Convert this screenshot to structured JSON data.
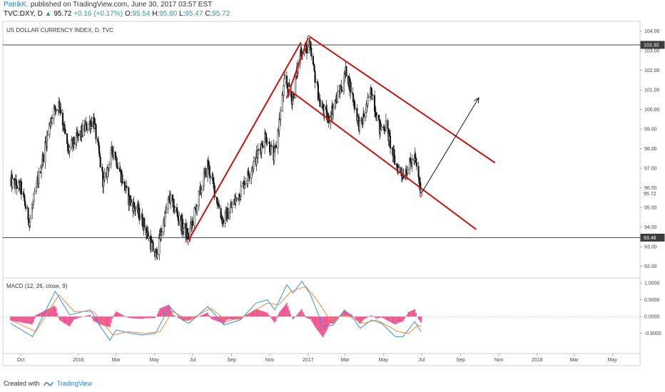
{
  "header": {
    "author": "PatrikK.",
    "published": "published on TradingView.com, June 30, 2017 03:57 EST",
    "symbol": "TVC:DXY, D",
    "price": "95.72",
    "change": "+0.16 (+0.17%)",
    "open_label": "O:",
    "open": "95.54",
    "high_label": "H:",
    "high": "95.80",
    "low_label": "L:",
    "low": "95.47",
    "close_label": "C:",
    "close": "95.72"
  },
  "footer": {
    "created_with": "Created with",
    "brand": "TradingView"
  },
  "colors": {
    "candles": "#111111",
    "trend_lines": "#cc1111",
    "arrow": "#111111",
    "macd_line": "#3d8fe0",
    "signal_line": "#f08a3c",
    "histogram": "#ee4a8a",
    "price_label_bg": "#3c3c3c"
  },
  "chart_data": [
    {
      "type": "candlestick",
      "title": "US DOLLAR CURRENCY INDEX, D, TVC",
      "x_labels": [
        "Oct",
        "2016",
        "Mar",
        "May",
        "Jul",
        "Sep",
        "Nov",
        "2017",
        "Mar",
        "May",
        "Jul",
        "Sep",
        "Nov",
        "2018",
        "Mar",
        "May"
      ],
      "y_ticks": [
        "104.00",
        "103.00",
        "102.00",
        "101.00",
        "100.00",
        "99.00",
        "98.00",
        "97.00",
        "96.00",
        "95.00",
        "94.00",
        "93.00",
        "92.00"
      ],
      "ylim": [
        91.4,
        104.5
      ],
      "price_labels": [
        {
          "text": "103.30",
          "value": 103.3
        },
        {
          "text": "95.72",
          "value": 95.72
        },
        {
          "text": "93.46",
          "value": 93.46
        }
      ],
      "horizontal_lines": [
        103.3,
        93.46
      ],
      "anchors": [
        {
          "date": "2015-09-15",
          "price": 96.3
        },
        {
          "date": "2015-10-01",
          "price": 96.0
        },
        {
          "date": "2015-10-15",
          "price": 94.3
        },
        {
          "date": "2015-11-20",
          "price": 99.8
        },
        {
          "date": "2015-12-02",
          "price": 100.3
        },
        {
          "date": "2015-12-15",
          "price": 97.9
        },
        {
          "date": "2015-12-25",
          "price": 98.3
        },
        {
          "date": "2016-01-10",
          "price": 99.0
        },
        {
          "date": "2016-01-25",
          "price": 99.5
        },
        {
          "date": "2016-02-10",
          "price": 96.2
        },
        {
          "date": "2016-02-25",
          "price": 98.0
        },
        {
          "date": "2016-03-20",
          "price": 95.5
        },
        {
          "date": "2016-04-10",
          "price": 94.5
        },
        {
          "date": "2016-05-03",
          "price": 92.5
        },
        {
          "date": "2016-05-25",
          "price": 95.5
        },
        {
          "date": "2016-06-15",
          "price": 94.0
        },
        {
          "date": "2016-06-24",
          "price": 93.5
        },
        {
          "date": "2016-07-25",
          "price": 97.2
        },
        {
          "date": "2016-08-18",
          "price": 94.3
        },
        {
          "date": "2016-09-10",
          "price": 95.5
        },
        {
          "date": "2016-10-10",
          "price": 97.5
        },
        {
          "date": "2016-10-25",
          "price": 98.7
        },
        {
          "date": "2016-11-08",
          "price": 97.5
        },
        {
          "date": "2016-11-25",
          "price": 101.5
        },
        {
          "date": "2016-12-07",
          "price": 100.5
        },
        {
          "date": "2016-12-20",
          "price": 103.0
        },
        {
          "date": "2017-01-03",
          "price": 103.2
        },
        {
          "date": "2017-01-20",
          "price": 100.3
        },
        {
          "date": "2017-02-02",
          "price": 99.5
        },
        {
          "date": "2017-02-25",
          "price": 101.3
        },
        {
          "date": "2017-03-03",
          "price": 102.0
        },
        {
          "date": "2017-03-25",
          "price": 99.0
        },
        {
          "date": "2017-04-12",
          "price": 101.0
        },
        {
          "date": "2017-04-25",
          "price": 99.0
        },
        {
          "date": "2017-05-05",
          "price": 99.2
        },
        {
          "date": "2017-05-20",
          "price": 97.2
        },
        {
          "date": "2017-06-01",
          "price": 96.7
        },
        {
          "date": "2017-06-20",
          "price": 97.5
        },
        {
          "date": "2017-06-30",
          "price": 95.72
        }
      ],
      "trend_lines": [
        {
          "from": {
            "date": "2016-06-24",
            "price": 93.3
          },
          "to": {
            "date": "2016-12-20",
            "price": 103.4
          }
        },
        {
          "from": {
            "date": "2017-01-02",
            "price": 103.75
          },
          "to": {
            "date": "2017-10-25",
            "price": 97.3
          }
        },
        {
          "from": {
            "date": "2016-12-02",
            "price": 101.0
          },
          "to": {
            "date": "2017-09-25",
            "price": 93.9
          }
        },
        {
          "from": {
            "date": "2016-11-28",
            "price": 100.6
          },
          "to": {
            "date": "2017-01-02",
            "price": 103.75
          }
        }
      ],
      "arrow": {
        "from": {
          "date": "2017-07-01",
          "price": 95.75
        },
        "to": {
          "date": "2017-09-30",
          "price": 100.6
        }
      },
      "pivot_marks": [
        {
          "date": "2016-06-24",
          "price": 93.3
        },
        {
          "date": "2016-12-02",
          "price": 101.1
        },
        {
          "date": "2017-01-02",
          "price": 103.7
        },
        {
          "date": "2017-06-30",
          "price": 95.65
        }
      ]
    },
    {
      "type": "line",
      "title": "MACD (12, 26, close, 9)",
      "y_ticks": [
        "1.0000",
        "0.5000",
        "0.0000",
        "-0.5000"
      ],
      "ylim": [
        -1.1,
        1.15
      ],
      "zero_line": 0,
      "series": [
        {
          "key": "macd",
          "color_key": "macd_line",
          "points": [
            [
              "2015-09-15",
              -0.2
            ],
            [
              "2015-10-20",
              -0.6
            ],
            [
              "2015-11-25",
              0.75
            ],
            [
              "2015-12-18",
              0.05
            ],
            [
              "2016-01-20",
              0.2
            ],
            [
              "2016-02-05",
              -0.3
            ],
            [
              "2016-02-20",
              -0.7
            ],
            [
              "2016-03-01",
              -0.4
            ],
            [
              "2016-03-25",
              -0.5
            ],
            [
              "2016-04-12",
              -0.55
            ],
            [
              "2016-05-03",
              -0.5
            ],
            [
              "2016-05-25",
              0.3
            ],
            [
              "2016-06-15",
              -0.1
            ],
            [
              "2016-06-25",
              -0.2
            ],
            [
              "2016-07-25",
              0.3
            ],
            [
              "2016-08-20",
              -0.25
            ],
            [
              "2016-09-15",
              -0.1
            ],
            [
              "2016-10-10",
              0.4
            ],
            [
              "2016-10-28",
              0.5
            ],
            [
              "2016-11-09",
              0.2
            ],
            [
              "2016-11-28",
              0.95
            ],
            [
              "2016-12-08",
              0.7
            ],
            [
              "2016-12-22",
              1.05
            ],
            [
              "2017-01-05",
              0.65
            ],
            [
              "2017-01-25",
              -0.3
            ],
            [
              "2017-02-10",
              -0.25
            ],
            [
              "2017-02-28",
              0.2
            ],
            [
              "2017-03-12",
              0.0
            ],
            [
              "2017-03-25",
              -0.35
            ],
            [
              "2017-04-12",
              -0.1
            ],
            [
              "2017-04-28",
              -0.2
            ],
            [
              "2017-05-20",
              -0.6
            ],
            [
              "2017-06-01",
              -0.6
            ],
            [
              "2017-06-20",
              -0.15
            ],
            [
              "2017-06-30",
              -0.45
            ]
          ]
        },
        {
          "key": "signal",
          "color_key": "signal_line",
          "points": [
            [
              "2015-09-15",
              -0.1
            ],
            [
              "2015-10-25",
              -0.45
            ],
            [
              "2015-12-01",
              0.65
            ],
            [
              "2015-12-25",
              0.15
            ],
            [
              "2016-01-25",
              0.15
            ],
            [
              "2016-02-25",
              -0.55
            ],
            [
              "2016-03-20",
              -0.45
            ],
            [
              "2016-04-15",
              -0.5
            ],
            [
              "2016-05-10",
              -0.45
            ],
            [
              "2016-05-30",
              0.15
            ],
            [
              "2016-06-25",
              -0.1
            ],
            [
              "2016-07-30",
              0.25
            ],
            [
              "2016-08-25",
              -0.15
            ],
            [
              "2016-09-20",
              0.0
            ],
            [
              "2016-10-28",
              0.4
            ],
            [
              "2016-11-15",
              0.35
            ],
            [
              "2016-12-05",
              0.75
            ],
            [
              "2016-12-28",
              0.9
            ],
            [
              "2017-01-15",
              0.5
            ],
            [
              "2017-02-05",
              -0.1
            ],
            [
              "2017-03-01",
              0.05
            ],
            [
              "2017-03-30",
              -0.2
            ],
            [
              "2017-04-20",
              -0.1
            ],
            [
              "2017-05-25",
              -0.45
            ],
            [
              "2017-06-10",
              -0.5
            ],
            [
              "2017-06-25",
              -0.25
            ],
            [
              "2017-06-30",
              -0.3
            ]
          ]
        }
      ]
    }
  ]
}
